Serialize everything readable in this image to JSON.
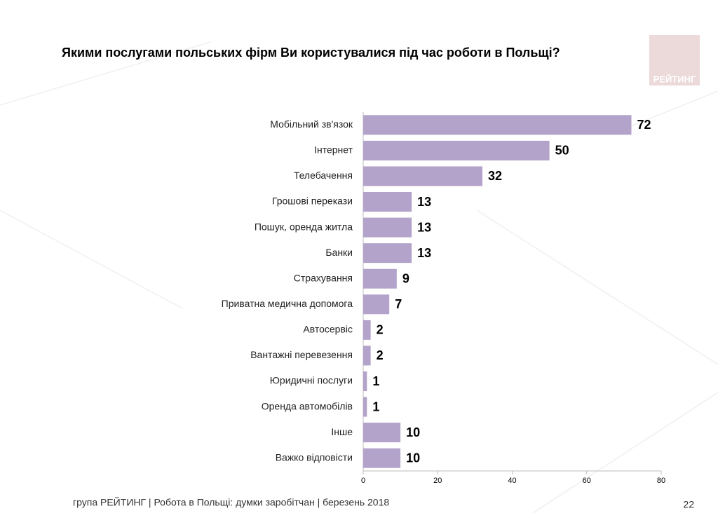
{
  "chart_data": {
    "type": "bar",
    "orientation": "horizontal",
    "title": "Якими послугами польських фірм Ви користувалися під час роботи в Польщі?",
    "categories": [
      "Мобільний зв'язок",
      "Інтернет",
      "Телебачення",
      "Грошові перекази",
      "Пошук, оренда житла",
      "Банки",
      "Страхування",
      "Приватна медична допомога",
      "Автосервіс",
      "Вантажні перевезення",
      "Юридичні послуги",
      "Оренда автомобілів",
      "Інше",
      "Важко відповісти"
    ],
    "values": [
      72,
      50,
      32,
      13,
      13,
      13,
      9,
      7,
      2,
      2,
      1,
      1,
      10,
      10
    ],
    "color": "#b3a2c9",
    "xlim": [
      0,
      80
    ],
    "xticks": [
      0,
      20,
      40,
      60,
      80
    ]
  },
  "logo": "РЕЙТИНГ",
  "footer": "група РЕЙТИНГ  | Робота в Польщі: думки заробітчан  |  березень 2018",
  "page_number": "22"
}
